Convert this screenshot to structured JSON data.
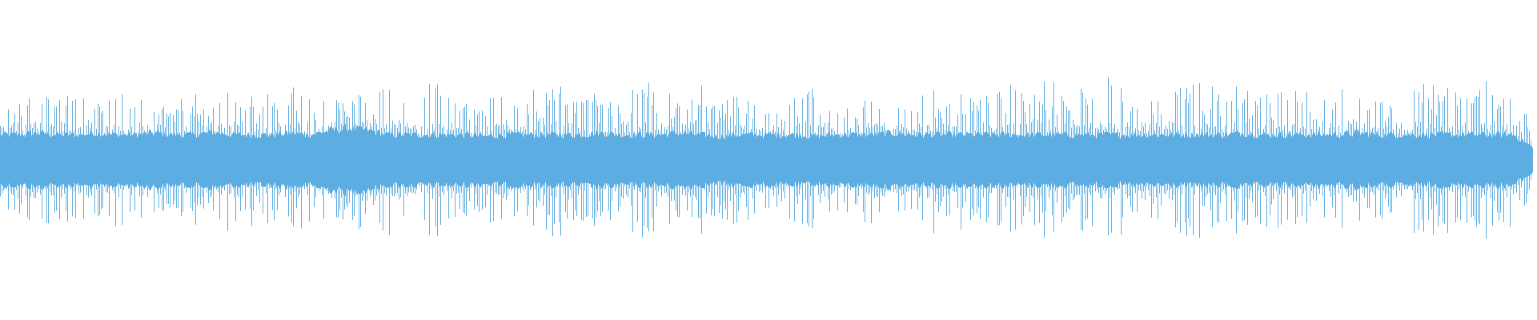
{
  "chart_data": {
    "type": "bar",
    "subtype": "audio-waveform",
    "title": "",
    "xlabel": "",
    "ylabel": "",
    "axes_visible": false,
    "grid": false,
    "ylim": [
      -1,
      1
    ],
    "color": "#5dade2",
    "background": "#ffffff",
    "peak_envelope": [
      0.6,
      0.75,
      0.95,
      0.85,
      0.8,
      0.85,
      0.85,
      0.8,
      0.75,
      0.85,
      0.8,
      0.85,
      0.9,
      0.8,
      0.85,
      0.9,
      0.95,
      0.8,
      0.75,
      0.98,
      1.0,
      0.85,
      1.0,
      0.95,
      0.78,
      0.75,
      0.9,
      0.85,
      0.95,
      0.92,
      0.9,
      0.8,
      0.85,
      1.0,
      0.85,
      0.9,
      0.95,
      0.85,
      1.0,
      0.9,
      0.6,
      0.98,
      1.0,
      0.7,
      0.65,
      0.95,
      0.8,
      0.75,
      0.9,
      0.8,
      0.9,
      0.85,
      0.95,
      0.85,
      0.98,
      0.95,
      0.9,
      1.0,
      1.0,
      0.95,
      1.0,
      1.0,
      0.95,
      0.9,
      0.95,
      0.9,
      0.95,
      0.88,
      1.0,
      0.9,
      0.9,
      0.98,
      0.85,
      1.0,
      0.95,
      0.88,
      0.95,
      1.0,
      0.95,
      0.35
    ],
    "core_envelope": [
      0.3,
      0.3,
      0.32,
      0.3,
      0.3,
      0.32,
      0.3,
      0.3,
      0.32,
      0.3,
      0.3,
      0.33,
      0.3,
      0.3,
      0.3,
      0.32,
      0.3,
      0.35,
      0.38,
      0.35,
      0.3,
      0.3,
      0.3,
      0.3,
      0.3,
      0.28,
      0.3,
      0.3,
      0.3,
      0.3,
      0.3,
      0.32,
      0.3,
      0.3,
      0.3,
      0.32,
      0.3,
      0.28,
      0.3,
      0.3,
      0.3,
      0.3,
      0.28,
      0.3,
      0.3,
      0.3,
      0.32,
      0.3,
      0.3,
      0.3,
      0.3,
      0.3,
      0.3,
      0.3,
      0.3,
      0.3,
      0.3,
      0.3,
      0.3,
      0.3,
      0.3,
      0.3,
      0.3,
      0.3,
      0.32,
      0.3,
      0.3,
      0.3,
      0.3,
      0.3,
      0.32,
      0.3,
      0.3,
      0.3,
      0.3,
      0.3,
      0.3,
      0.3,
      0.3,
      0.15
    ]
  }
}
